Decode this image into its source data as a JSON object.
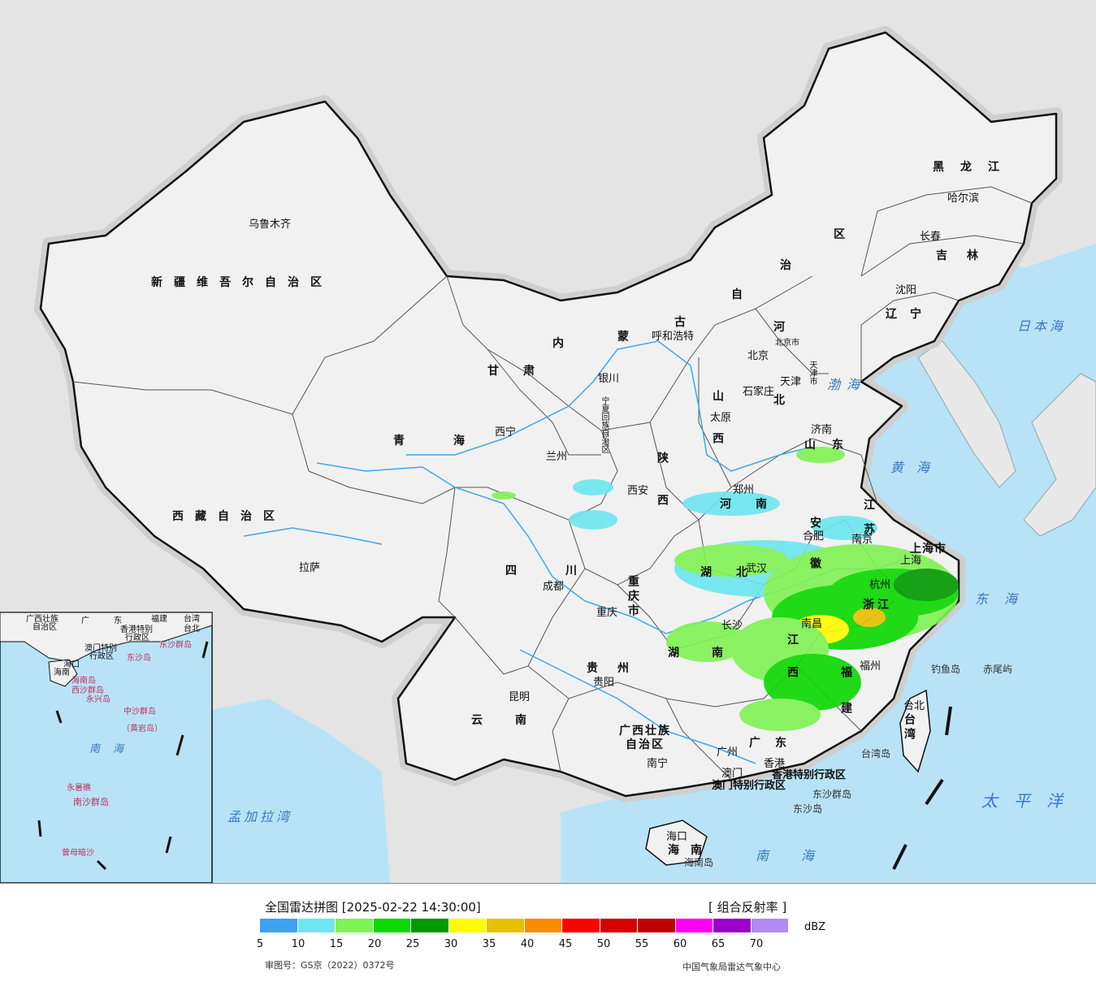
{
  "colors": {
    "sea": "#b8e3f6",
    "land": "#f1f1f1",
    "outside": "#e4e4e4",
    "border": "#111111",
    "river": "#3aa9e8"
  },
  "legend": {
    "title": "全国雷达拼图 [2025-02-22 14:30:00]",
    "product": "[ 组合反射率 ]",
    "unit": "dBZ",
    "ticks": [
      "5",
      "10",
      "15",
      "20",
      "25",
      "30",
      "35",
      "40",
      "45",
      "50",
      "55",
      "60",
      "65",
      "70"
    ],
    "swatches": [
      "#3ea2f2",
      "#6de6ef",
      "#7ff254",
      "#0ad800",
      "#009900",
      "#fffc00",
      "#e8c000",
      "#ff8a00",
      "#ff0000",
      "#d60000",
      "#c00000",
      "#ff00f5",
      "#9b00c8",
      "#b08cf2"
    ],
    "approval": "审图号：GS京（2022）0372号",
    "agency": "中国气象局雷达气象中心"
  },
  "provinces": [
    {
      "id": "xinjiang",
      "text": "新疆维吾尔自治区"
    },
    {
      "id": "xizang",
      "text": "西藏自治区"
    },
    {
      "id": "qinghai",
      "text": "青海"
    },
    {
      "id": "gansu",
      "text": "甘肃"
    },
    {
      "id": "heilongjiang",
      "text": "黑龙江"
    },
    {
      "id": "jilin",
      "text": "吉林"
    },
    {
      "id": "liaoning",
      "text": "辽宁"
    },
    {
      "id": "sichuan",
      "text": "四川"
    },
    {
      "id": "guizhou",
      "text": "贵州"
    },
    {
      "id": "yunnan",
      "text": "云南"
    },
    {
      "id": "guangxi1",
      "text": "广西壮族"
    },
    {
      "id": "guangxi2",
      "text": "自治区"
    },
    {
      "id": "guangdong",
      "text": "广东"
    },
    {
      "id": "fujian",
      "text": "福建"
    },
    {
      "id": "jiangxi",
      "text": "江西"
    },
    {
      "id": "hunan",
      "text": "湖南"
    },
    {
      "id": "hubei",
      "text": "湖北"
    },
    {
      "id": "henan",
      "text": "河南"
    },
    {
      "id": "anhui",
      "text": "安徽"
    },
    {
      "id": "zhejiang",
      "text": "浙江"
    },
    {
      "id": "jiangsu",
      "text": "江苏"
    },
    {
      "id": "shandong",
      "text": "山东"
    },
    {
      "id": "shanxi",
      "text": "山西"
    },
    {
      "id": "shaanxi",
      "text": "陕西"
    },
    {
      "id": "chongqing",
      "text": "重庆市"
    },
    {
      "id": "hainan",
      "text": "海南"
    },
    {
      "id": "taiwan",
      "text": "台湾"
    },
    {
      "id": "shanghai",
      "text": "上海市"
    },
    {
      "id": "ningxia",
      "text": "宁夏回族自治区"
    }
  ],
  "neimenggu": [
    "内",
    "蒙",
    "古",
    "自",
    "治",
    "区"
  ],
  "hebei": [
    "河",
    "北"
  ],
  "cities": [
    {
      "id": "urumqi",
      "text": "乌鲁木齐"
    },
    {
      "id": "lhasa",
      "text": "拉萨"
    },
    {
      "id": "xining",
      "text": "西宁"
    },
    {
      "id": "lanzhou",
      "text": "兰州"
    },
    {
      "id": "yinchuan",
      "text": "银川"
    },
    {
      "id": "huhehaote",
      "text": "呼和浩特"
    },
    {
      "id": "beijing",
      "text": "北京"
    },
    {
      "id": "beijingshi",
      "text": "北京市"
    },
    {
      "id": "tianjin",
      "text": "天津"
    },
    {
      "id": "tianjinshi",
      "text": "天津市"
    },
    {
      "id": "shijiazhuang",
      "text": "石家庄"
    },
    {
      "id": "taiyuan",
      "text": "太原"
    },
    {
      "id": "jinan",
      "text": "济南"
    },
    {
      "id": "xian",
      "text": "西安"
    },
    {
      "id": "zhengzhou",
      "text": "郑州"
    },
    {
      "id": "hefei",
      "text": "合肥"
    },
    {
      "id": "nanjing",
      "text": "南京"
    },
    {
      "id": "shanghaic",
      "text": "上海"
    },
    {
      "id": "hangzhou",
      "text": "杭州"
    },
    {
      "id": "wuhan",
      "text": "武汉"
    },
    {
      "id": "chengdu",
      "text": "成都"
    },
    {
      "id": "chongqingc",
      "text": "重庆"
    },
    {
      "id": "changsha",
      "text": "长沙"
    },
    {
      "id": "nanchang",
      "text": "南昌"
    },
    {
      "id": "fuzhou",
      "text": "福州"
    },
    {
      "id": "guiyang",
      "text": "贵阳"
    },
    {
      "id": "kunming",
      "text": "昆明"
    },
    {
      "id": "nanning",
      "text": "南宁"
    },
    {
      "id": "guangzhou",
      "text": "广州"
    },
    {
      "id": "xianggang",
      "text": "香港"
    },
    {
      "id": "aomen",
      "text": "澳门"
    },
    {
      "id": "haikou",
      "text": "海口"
    },
    {
      "id": "taibei",
      "text": "台北"
    },
    {
      "id": "shenyang",
      "text": "沈阳"
    },
    {
      "id": "changchun",
      "text": "长春"
    },
    {
      "id": "haerbin",
      "text": "哈尔滨"
    }
  ],
  "regions": [
    {
      "id": "hk",
      "text": "香港特别行政区"
    },
    {
      "id": "mo",
      "text": "澳门特别行政区"
    }
  ],
  "seas": [
    {
      "id": "bohai",
      "text": "渤海"
    },
    {
      "id": "huanghai",
      "text": "黄海"
    },
    {
      "id": "donghai",
      "text": "东海"
    },
    {
      "id": "nanhai",
      "text": "南海"
    },
    {
      "id": "ribenhai",
      "text": "日本海"
    },
    {
      "id": "taipingyang",
      "text": "太平洋"
    },
    {
      "id": "mengjiala",
      "text": "孟加拉湾"
    }
  ],
  "islands": [
    {
      "id": "diaoyu",
      "text": "钓鱼岛"
    },
    {
      "id": "chiwei",
      "text": "赤尾屿"
    },
    {
      "id": "taiwandao",
      "text": "台湾岛"
    },
    {
      "id": "dongsha1",
      "text": "东沙群岛"
    },
    {
      "id": "dongsha2",
      "text": "东沙岛"
    },
    {
      "id": "hainandao",
      "text": "海南岛"
    }
  ],
  "inset": {
    "labels": [
      "广西壮族",
      "自治区",
      "广东",
      "福建",
      "台湾",
      "香港特别",
      "行政区",
      "澳门特别",
      "行政区",
      "东沙群岛",
      "东沙岛",
      "海口",
      "海南",
      "海南岛",
      "西沙群岛",
      "永兴岛",
      "中沙群岛",
      "（黄岩岛）",
      "南海",
      "永暑礁",
      "南沙群岛",
      "曾母暗沙",
      "台北"
    ]
  }
}
